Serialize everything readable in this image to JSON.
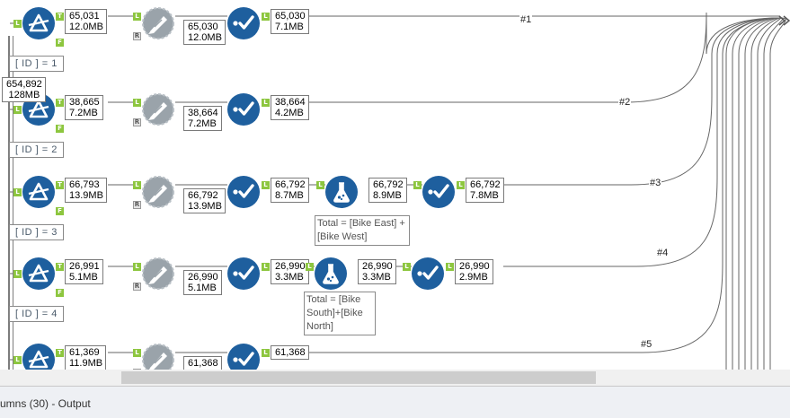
{
  "filters": [
    {
      "badge_top": "65,031",
      "badge_bottom": "12.0MB",
      "condition": "[ ID ] = 1"
    },
    {
      "badge_top": "38,665",
      "badge_bottom": "7.2MB",
      "condition": "[ ID ] = 2"
    },
    {
      "badge_top": "66,793",
      "badge_bottom": "13.9MB",
      "condition": "[ ID ] = 3"
    },
    {
      "badge_top": "26,991",
      "badge_bottom": "5.1MB",
      "condition": "[ ID ] = 4"
    },
    {
      "badge_top": "61,369",
      "badge_bottom": "11.9MB"
    }
  ],
  "joins": [
    {
      "badge_top": "65,030",
      "badge_bottom": "12.0MB"
    },
    {
      "badge_top": "38,664",
      "badge_bottom": "7.2MB"
    },
    {
      "badge_top": "66,792",
      "badge_bottom": "13.9MB"
    },
    {
      "badge_top": "26,990",
      "badge_bottom": "5.1MB"
    },
    {
      "badge_top": "61,368"
    }
  ],
  "selects": [
    {
      "badge_top": "65,030",
      "badge_bottom": "7.1MB"
    },
    {
      "badge_top": "38,664",
      "badge_bottom": "4.2MB"
    },
    {
      "badge_top": "66,792",
      "badge_bottom": "8.7MB"
    },
    {
      "badge_top": "26,990",
      "badge_bottom": "3.3MB"
    },
    {
      "badge_top": "61,368"
    }
  ],
  "formulas": [
    {
      "badge_top": "66,792",
      "badge_bottom": "8.9MB",
      "expression": "Total = [Bike East] +[Bike West]"
    },
    {
      "badge_top": "26,990",
      "badge_bottom": "3.3MB",
      "expression": "Total = [Bike South]+[Bike North]"
    }
  ],
  "selects2": [
    {
      "badge_top": "66,792",
      "badge_bottom": "7.8MB"
    },
    {
      "badge_top": "26,990",
      "badge_bottom": "2.9MB"
    }
  ],
  "source_badge": {
    "top": "654,892",
    "bottom": "128MB"
  },
  "wire_labels": [
    "#1",
    "#2",
    "#3",
    "#4",
    "#5"
  ],
  "connector_labels": {
    "true": "T",
    "false": "F",
    "left": "L",
    "right": "R"
  },
  "output_panel": {
    "label": "umns (30) - Output"
  },
  "icons": {
    "filter": "filter-icon",
    "join": "join-icon",
    "select": "select-icon",
    "formula": "formula-flask-icon",
    "union": "union-input-anchor-icon"
  },
  "colors": {
    "tool_blue": "#1e5f9e",
    "join_gray": "#9aa3aa",
    "anchor_green": "#8dc63f",
    "wire": "#555555"
  }
}
